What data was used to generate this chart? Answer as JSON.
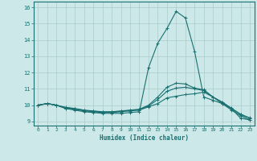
{
  "xlabel": "Humidex (Indice chaleur)",
  "background_color": "#cce8e8",
  "grid_color": "#aacccc",
  "line_color": "#1a7070",
  "xlim": [
    -0.5,
    23.5
  ],
  "ylim": [
    8.75,
    16.35
  ],
  "xticks": [
    0,
    1,
    2,
    3,
    4,
    5,
    6,
    7,
    8,
    9,
    10,
    11,
    12,
    13,
    14,
    15,
    16,
    17,
    18,
    19,
    20,
    21,
    22,
    23
  ],
  "yticks": [
    9,
    10,
    11,
    12,
    13,
    14,
    15,
    16
  ],
  "lines": [
    {
      "x": [
        0,
        1,
        2,
        3,
        4,
        5,
        6,
        7,
        8,
        9,
        10,
        11,
        12,
        13,
        14,
        15,
        16,
        17,
        18,
        19,
        20,
        21,
        22,
        23
      ],
      "y": [
        10.0,
        10.1,
        10.0,
        9.8,
        9.7,
        9.6,
        9.55,
        9.5,
        9.5,
        9.5,
        9.55,
        9.6,
        12.3,
        13.8,
        14.7,
        15.75,
        15.35,
        13.3,
        10.5,
        10.3,
        10.1,
        9.8,
        9.2,
        9.1
      ]
    },
    {
      "x": [
        0,
        1,
        2,
        3,
        4,
        5,
        6,
        7,
        8,
        9,
        10,
        11,
        12,
        13,
        14,
        15,
        16,
        17,
        18,
        19,
        20,
        21,
        22,
        23
      ],
      "y": [
        10.0,
        10.1,
        10.0,
        9.8,
        9.75,
        9.65,
        9.6,
        9.55,
        9.55,
        9.6,
        9.65,
        9.7,
        9.9,
        10.1,
        10.45,
        10.55,
        10.65,
        10.7,
        10.8,
        10.5,
        10.1,
        9.7,
        9.35,
        9.1
      ]
    },
    {
      "x": [
        0,
        1,
        2,
        3,
        4,
        5,
        6,
        7,
        8,
        9,
        10,
        11,
        12,
        13,
        14,
        15,
        16,
        17,
        18,
        19,
        20,
        21,
        22,
        23
      ],
      "y": [
        10.0,
        10.1,
        10.0,
        9.85,
        9.78,
        9.68,
        9.63,
        9.58,
        9.58,
        9.63,
        9.68,
        9.73,
        9.95,
        10.35,
        10.85,
        11.05,
        11.1,
        11.0,
        10.9,
        10.5,
        10.15,
        9.8,
        9.42,
        9.2
      ]
    },
    {
      "x": [
        0,
        1,
        2,
        3,
        4,
        5,
        6,
        7,
        8,
        9,
        10,
        11,
        12,
        13,
        14,
        15,
        16,
        17,
        18,
        19,
        20,
        21,
        22,
        23
      ],
      "y": [
        10.0,
        10.1,
        10.0,
        9.87,
        9.8,
        9.7,
        9.65,
        9.6,
        9.6,
        9.65,
        9.7,
        9.75,
        10.0,
        10.5,
        11.1,
        11.35,
        11.3,
        11.05,
        10.95,
        10.5,
        10.2,
        9.82,
        9.45,
        9.22
      ]
    }
  ]
}
